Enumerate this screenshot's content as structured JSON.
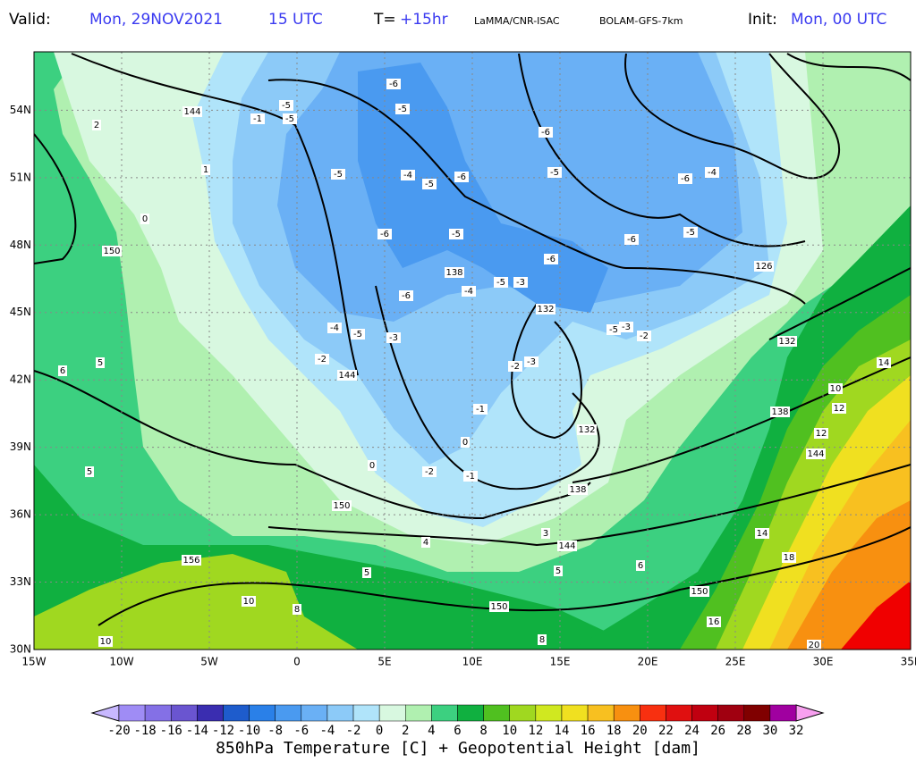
{
  "header": {
    "valid_label": "Valid:",
    "valid_time": "Mon, 29NOV2021",
    "valid_hour": "15 UTC",
    "lead_label": "T=",
    "lead_time": "+15hr",
    "source": "LaMMA/CNR-ISAC",
    "model": "BOLAM-GFS-7km",
    "init_label": "Init:",
    "init_time": "Mon, 00 UTC"
  },
  "axes": {
    "xlim": [
      -15,
      35
    ],
    "ylim": [
      30,
      56.6
    ],
    "xticks": [
      {
        "value": -15,
        "label": "15W"
      },
      {
        "value": -10,
        "label": "10W"
      },
      {
        "value": -5,
        "label": "5W"
      },
      0,
      {
        "value": 5,
        "label": "5E"
      },
      {
        "value": 10,
        "label": "10E"
      },
      {
        "value": 15,
        "label": "15E"
      },
      {
        "value": 20,
        "label": "20E"
      },
      {
        "value": 25,
        "label": "25E"
      },
      {
        "value": 30,
        "label": "30E"
      },
      {
        "value": 35,
        "label": "35E"
      }
    ],
    "yticks": [
      {
        "value": 30,
        "label": "30N"
      },
      {
        "value": 33,
        "label": "33N"
      },
      {
        "value": 36,
        "label": "36N"
      },
      {
        "value": 39,
        "label": "39N"
      },
      {
        "value": 42,
        "label": "42N"
      },
      {
        "value": 45,
        "label": "45N"
      },
      {
        "value": 48,
        "label": "48N"
      },
      {
        "value": 51,
        "label": "51N"
      },
      {
        "value": 54,
        "label": "54N"
      }
    ]
  },
  "contour_labels": [
    "-6",
    "-5",
    "-5",
    "-1",
    "-5",
    "144",
    "2",
    "-5",
    "-4",
    "-5",
    "-6",
    "-6",
    "-5",
    "-6",
    "-4",
    "-6",
    "-5",
    "-6",
    "-6",
    "-5",
    "150",
    "0",
    "1",
    "138",
    "-4",
    "-6",
    "-5",
    "-3",
    "132",
    "-4",
    "-5",
    "-3",
    "-2",
    "144",
    "-5",
    "-2",
    "-3",
    "132",
    "126",
    "-2",
    "-3",
    "-1",
    "0",
    "0",
    "-2",
    "-1",
    "132",
    "138",
    "144",
    "138",
    "144",
    "150",
    "150",
    "150",
    "156",
    "5",
    "5",
    "6",
    "10",
    "12",
    "14",
    "12",
    "14",
    "18",
    "16",
    "20",
    "10",
    "10",
    "8",
    "8",
    "6",
    "5",
    "4",
    "5",
    "3"
  ],
  "colorbar": {
    "title": "850hPa Temperature [C] + Geopotential Height [dam]",
    "levels": [
      -20,
      -18,
      -16,
      -14,
      -12,
      -10,
      -8,
      -6,
      -4,
      -2,
      0,
      2,
      4,
      6,
      8,
      10,
      12,
      14,
      16,
      18,
      20,
      22,
      24,
      26,
      28,
      30,
      32
    ],
    "colors": [
      "#9f8cf5",
      "#8470e6",
      "#6a55d0",
      "#3a2db0",
      "#1e5ccc",
      "#2a80e8",
      "#4a9af0",
      "#6ab0f5",
      "#8ccaf8",
      "#b0e4fa",
      "#d8f8e0",
      "#b0f0b0",
      "#3cd080",
      "#10b040",
      "#50c020",
      "#a0d820",
      "#d0e820",
      "#f0e020",
      "#f8c020",
      "#f89010",
      "#f83010",
      "#e01010",
      "#c00010",
      "#a00010",
      "#800000",
      "#a000a0"
    ],
    "under_color": "#c8b8ff",
    "over_color": "#f8a0f0"
  }
}
